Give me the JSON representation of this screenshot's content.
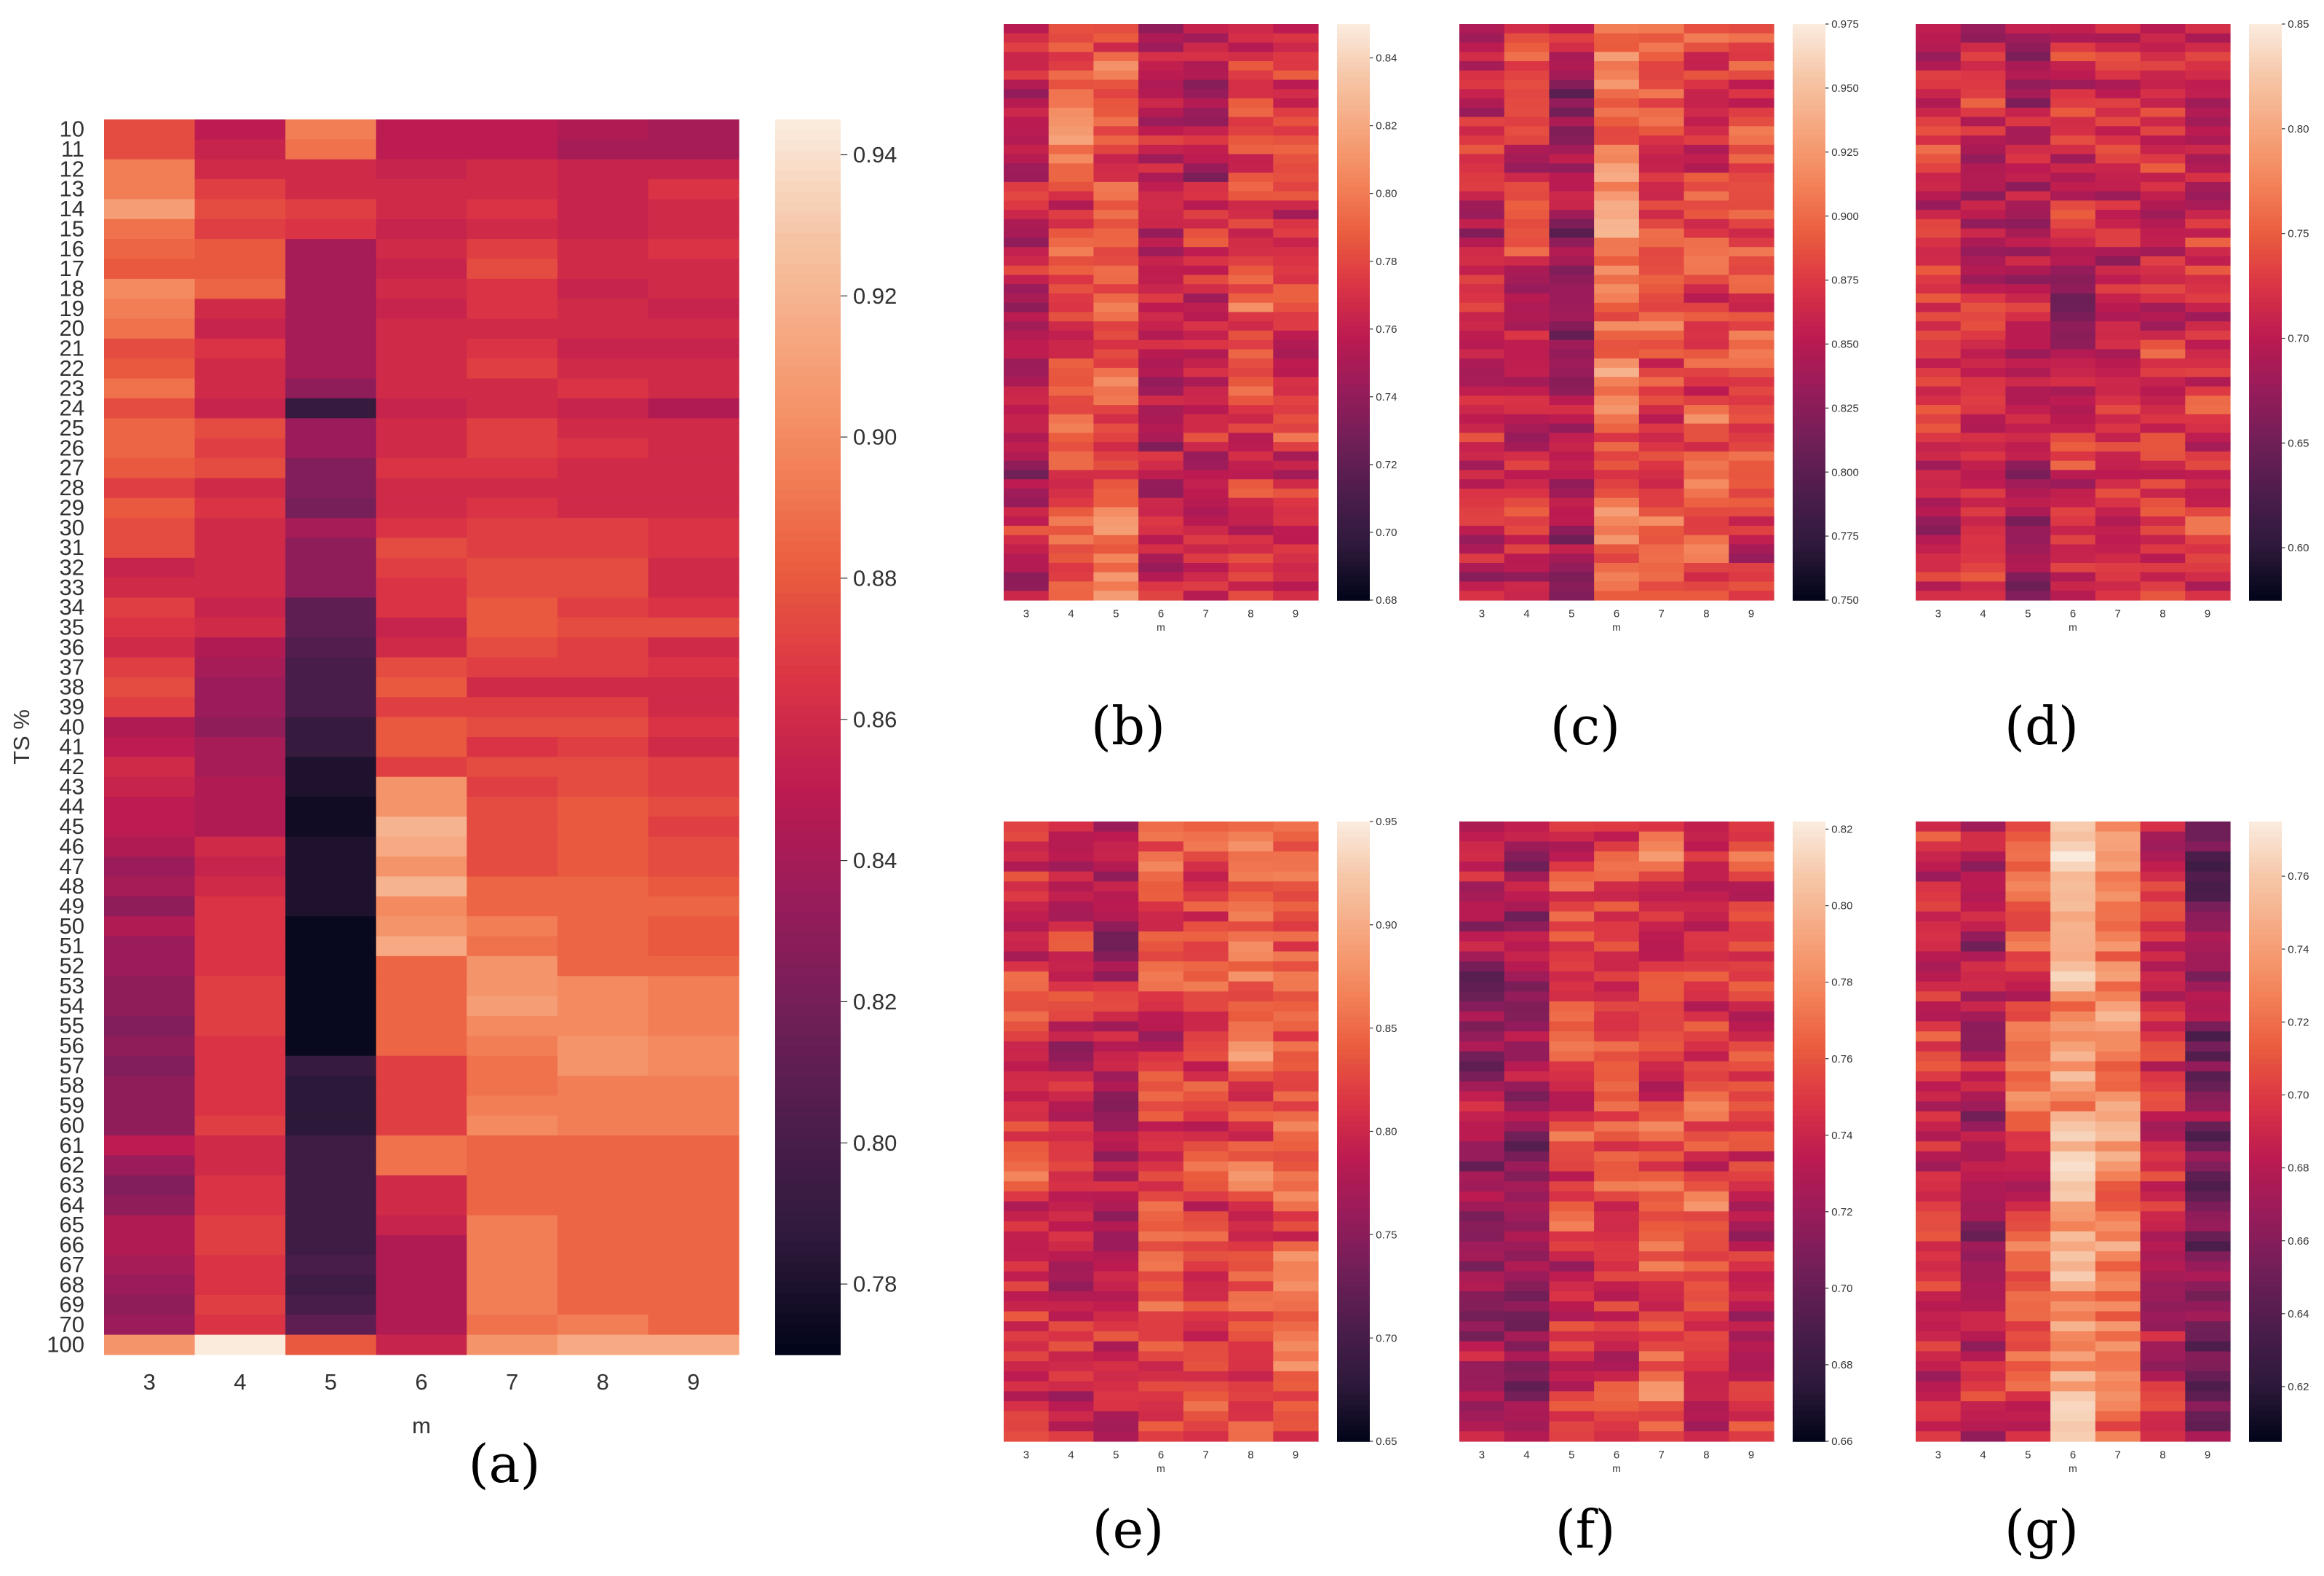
{
  "figure": {
    "panel_labels": [
      "(a)",
      "(b)",
      "(c)",
      "(d)",
      "(e)",
      "(f)",
      "(g)"
    ],
    "colormap": "rocket",
    "colormap_stops": [
      "#03051a",
      "#2e1a3b",
      "#4c1d4b",
      "#701f57",
      "#971c5b",
      "#bb1b51",
      "#da3445",
      "#ea5c3e",
      "#f3845a",
      "#f6a57d",
      "#f6c5a6",
      "#faebdd"
    ]
  },
  "chart_data": [
    {
      "panel": "(a)",
      "type": "heatmap",
      "xlabel": "m",
      "ylabel": "TS %",
      "x_categories": [
        "3",
        "4",
        "5",
        "6",
        "7",
        "8",
        "9"
      ],
      "y_categories": [
        "10",
        "11",
        "12",
        "13",
        "14",
        "15",
        "16",
        "17",
        "18",
        "19",
        "20",
        "21",
        "22",
        "23",
        "24",
        "25",
        "26",
        "27",
        "28",
        "29",
        "30",
        "31",
        "32",
        "33",
        "34",
        "35",
        "36",
        "37",
        "38",
        "39",
        "40",
        "41",
        "42",
        "43",
        "44",
        "45",
        "46",
        "47",
        "48",
        "49",
        "50",
        "51",
        "52",
        "53",
        "54",
        "55",
        "56",
        "57",
        "58",
        "59",
        "60",
        "61",
        "62",
        "63",
        "64",
        "65",
        "66",
        "67",
        "68",
        "69",
        "70",
        "100"
      ],
      "vmin": 0.77,
      "vmax": 0.945,
      "colorbar_ticks": [
        "0.78",
        "0.80",
        "0.82",
        "0.84",
        "0.86",
        "0.88",
        "0.90",
        "0.92",
        "0.94"
      ],
      "columns": {
        "3": [
          0.875,
          0.875,
          0.895,
          0.895,
          0.91,
          0.89,
          0.885,
          0.88,
          0.9,
          0.895,
          0.89,
          0.875,
          0.88,
          0.89,
          0.875,
          0.885,
          0.885,
          0.88,
          0.87,
          0.88,
          0.875,
          0.875,
          0.855,
          0.86,
          0.87,
          0.865,
          0.86,
          0.87,
          0.875,
          0.87,
          0.845,
          0.85,
          0.86,
          0.855,
          0.85,
          0.85,
          0.845,
          0.835,
          0.84,
          0.83,
          0.845,
          0.835,
          0.835,
          0.83,
          0.83,
          0.825,
          0.83,
          0.825,
          0.83,
          0.83,
          0.83,
          0.85,
          0.835,
          0.825,
          0.83,
          0.845,
          0.845,
          0.84,
          0.835,
          0.83,
          0.835,
          0.905
        ],
        "4": [
          0.85,
          0.855,
          0.86,
          0.87,
          0.875,
          0.87,
          0.88,
          0.88,
          0.885,
          0.86,
          0.855,
          0.865,
          0.86,
          0.86,
          0.855,
          0.875,
          0.87,
          0.875,
          0.86,
          0.865,
          0.86,
          0.86,
          0.86,
          0.86,
          0.855,
          0.86,
          0.845,
          0.84,
          0.835,
          0.835,
          0.83,
          0.84,
          0.84,
          0.845,
          0.845,
          0.845,
          0.86,
          0.855,
          0.86,
          0.865,
          0.865,
          0.865,
          0.865,
          0.87,
          0.87,
          0.87,
          0.865,
          0.865,
          0.865,
          0.865,
          0.87,
          0.86,
          0.86,
          0.865,
          0.865,
          0.87,
          0.87,
          0.865,
          0.865,
          0.87,
          0.865,
          0.945
        ],
        "5": [
          0.895,
          0.89,
          0.86,
          0.86,
          0.87,
          0.865,
          0.84,
          0.84,
          0.84,
          0.84,
          0.84,
          0.84,
          0.84,
          0.83,
          0.79,
          0.835,
          0.835,
          0.825,
          0.825,
          0.82,
          0.84,
          0.83,
          0.83,
          0.83,
          0.81,
          0.81,
          0.805,
          0.8,
          0.8,
          0.8,
          0.79,
          0.79,
          0.78,
          0.78,
          0.775,
          0.775,
          0.78,
          0.78,
          0.78,
          0.78,
          0.772,
          0.772,
          0.772,
          0.772,
          0.772,
          0.772,
          0.772,
          0.79,
          0.785,
          0.785,
          0.785,
          0.795,
          0.795,
          0.795,
          0.795,
          0.795,
          0.795,
          0.8,
          0.795,
          0.8,
          0.81,
          0.88
        ],
        "6": [
          0.85,
          0.85,
          0.855,
          0.86,
          0.86,
          0.855,
          0.86,
          0.855,
          0.86,
          0.855,
          0.86,
          0.86,
          0.86,
          0.86,
          0.855,
          0.86,
          0.86,
          0.865,
          0.86,
          0.86,
          0.865,
          0.875,
          0.87,
          0.865,
          0.865,
          0.855,
          0.86,
          0.875,
          0.88,
          0.87,
          0.88,
          0.88,
          0.87,
          0.905,
          0.905,
          0.92,
          0.915,
          0.905,
          0.92,
          0.9,
          0.905,
          0.915,
          0.885,
          0.885,
          0.885,
          0.885,
          0.885,
          0.87,
          0.87,
          0.87,
          0.87,
          0.89,
          0.89,
          0.86,
          0.86,
          0.855,
          0.845,
          0.845,
          0.845,
          0.845,
          0.845,
          0.855
        ],
        "7": [
          0.85,
          0.85,
          0.86,
          0.86,
          0.865,
          0.86,
          0.87,
          0.875,
          0.865,
          0.865,
          0.86,
          0.865,
          0.87,
          0.86,
          0.86,
          0.87,
          0.87,
          0.865,
          0.86,
          0.865,
          0.87,
          0.87,
          0.875,
          0.875,
          0.88,
          0.88,
          0.875,
          0.87,
          0.86,
          0.87,
          0.875,
          0.865,
          0.875,
          0.87,
          0.875,
          0.875,
          0.875,
          0.875,
          0.885,
          0.885,
          0.895,
          0.89,
          0.905,
          0.905,
          0.91,
          0.9,
          0.895,
          0.89,
          0.89,
          0.895,
          0.9,
          0.885,
          0.885,
          0.885,
          0.885,
          0.895,
          0.895,
          0.895,
          0.895,
          0.895,
          0.89,
          0.905
        ],
        "8": [
          0.845,
          0.84,
          0.855,
          0.855,
          0.855,
          0.855,
          0.86,
          0.86,
          0.855,
          0.86,
          0.86,
          0.855,
          0.86,
          0.865,
          0.855,
          0.86,
          0.865,
          0.86,
          0.86,
          0.86,
          0.87,
          0.87,
          0.875,
          0.875,
          0.87,
          0.875,
          0.87,
          0.87,
          0.86,
          0.87,
          0.875,
          0.87,
          0.875,
          0.875,
          0.88,
          0.88,
          0.88,
          0.88,
          0.885,
          0.885,
          0.885,
          0.885,
          0.885,
          0.9,
          0.9,
          0.9,
          0.905,
          0.905,
          0.895,
          0.895,
          0.895,
          0.885,
          0.885,
          0.885,
          0.885,
          0.885,
          0.885,
          0.885,
          0.885,
          0.885,
          0.895,
          0.915
        ],
        "9": [
          0.84,
          0.84,
          0.855,
          0.865,
          0.86,
          0.86,
          0.865,
          0.86,
          0.86,
          0.855,
          0.86,
          0.855,
          0.86,
          0.86,
          0.845,
          0.86,
          0.86,
          0.86,
          0.86,
          0.86,
          0.865,
          0.865,
          0.86,
          0.86,
          0.865,
          0.875,
          0.86,
          0.865,
          0.86,
          0.86,
          0.865,
          0.86,
          0.87,
          0.87,
          0.875,
          0.87,
          0.875,
          0.875,
          0.88,
          0.885,
          0.88,
          0.88,
          0.885,
          0.895,
          0.895,
          0.895,
          0.9,
          0.9,
          0.895,
          0.895,
          0.895,
          0.885,
          0.885,
          0.885,
          0.885,
          0.885,
          0.885,
          0.885,
          0.885,
          0.885,
          0.885,
          0.915
        ]
      }
    },
    {
      "panel": "(b)",
      "type": "heatmap",
      "xlabel": "m",
      "x_categories": [
        "3",
        "4",
        "5",
        "6",
        "7",
        "8",
        "9"
      ],
      "rows": 62,
      "vmin": 0.68,
      "vmax": 0.85,
      "colorbar_ticks": [
        "0.68",
        "0.70",
        "0.72",
        "0.74",
        "0.76",
        "0.78",
        "0.80",
        "0.82",
        "0.84"
      ],
      "column_means": [
        0.76,
        0.79,
        0.79,
        0.76,
        0.76,
        0.78,
        0.77
      ]
    },
    {
      "panel": "(c)",
      "type": "heatmap",
      "xlabel": "m",
      "x_categories": [
        "3",
        "4",
        "5",
        "6",
        "7",
        "8",
        "9"
      ],
      "rows": 62,
      "vmin": 0.75,
      "vmax": 0.975,
      "colorbar_ticks": [
        "0.750",
        "0.775",
        "0.800",
        "0.825",
        "0.850",
        "0.875",
        "0.900",
        "0.925",
        "0.950",
        "0.975"
      ],
      "column_means": [
        0.86,
        0.86,
        0.84,
        0.91,
        0.89,
        0.88,
        0.88
      ]
    },
    {
      "panel": "(d)",
      "type": "heatmap",
      "xlabel": "m",
      "x_categories": [
        "3",
        "4",
        "5",
        "6",
        "7",
        "8",
        "9"
      ],
      "rows": 62,
      "vmin": 0.575,
      "vmax": 0.85,
      "colorbar_ticks": [
        "0.60",
        "0.65",
        "0.70",
        "0.75",
        "0.80",
        "0.85"
      ],
      "column_means": [
        0.71,
        0.71,
        0.7,
        0.71,
        0.72,
        0.72,
        0.73
      ]
    },
    {
      "panel": "(e)",
      "type": "heatmap",
      "xlabel": "m",
      "x_categories": [
        "3",
        "4",
        "5",
        "6",
        "7",
        "8",
        "9"
      ],
      "rows": 62,
      "vmin": 0.65,
      "vmax": 0.95,
      "colorbar_ticks": [
        "0.65",
        "0.70",
        "0.75",
        "0.80",
        "0.85",
        "0.90",
        "0.95"
      ],
      "column_means": [
        0.82,
        0.8,
        0.79,
        0.82,
        0.82,
        0.84,
        0.84
      ]
    },
    {
      "panel": "(f)",
      "type": "heatmap",
      "xlabel": "m",
      "x_categories": [
        "3",
        "4",
        "5",
        "6",
        "7",
        "8",
        "9"
      ],
      "rows": 62,
      "vmin": 0.66,
      "vmax": 0.822,
      "colorbar_ticks": [
        "0.66",
        "0.68",
        "0.70",
        "0.72",
        "0.74",
        "0.76",
        "0.78",
        "0.80",
        "0.82"
      ],
      "column_means": [
        0.72,
        0.72,
        0.75,
        0.75,
        0.76,
        0.75,
        0.75
      ]
    },
    {
      "panel": "(g)",
      "type": "heatmap",
      "xlabel": "m",
      "x_categories": [
        "3",
        "4",
        "5",
        "6",
        "7",
        "8",
        "9"
      ],
      "rows": 62,
      "vmin": 0.605,
      "vmax": 0.775,
      "colorbar_ticks": [
        "0.62",
        "0.64",
        "0.66",
        "0.68",
        "0.70",
        "0.72",
        "0.74",
        "0.76"
      ],
      "column_means": [
        0.69,
        0.68,
        0.71,
        0.74,
        0.73,
        0.69,
        0.66
      ]
    }
  ]
}
